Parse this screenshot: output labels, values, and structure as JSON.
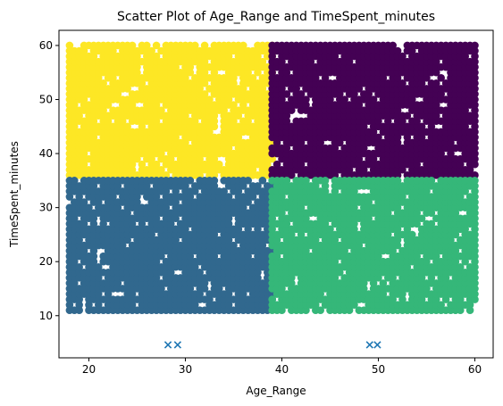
{
  "chart_data": {
    "type": "scatter",
    "title": "Scatter Plot of Age_Range and TimeSpent_minutes",
    "xlabel": "Age_Range",
    "ylabel": "TimeSpent_minutes",
    "xlim": [
      16.9,
      61.9
    ],
    "ylim": [
      2.2,
      62.8
    ],
    "xticks": [
      20,
      30,
      40,
      50,
      60
    ],
    "yticks": [
      10,
      20,
      30,
      40,
      50,
      60
    ],
    "grid": false,
    "colors": {
      "young_high": "#fde725",
      "young_low": "#31688e",
      "old_high": "#440154",
      "old_low": "#35b779",
      "centroid": "#1f77b4"
    },
    "clusters": [
      {
        "color_key": "young_high",
        "x_range": [
          18,
          39
        ],
        "y_range": [
          36,
          60
        ]
      },
      {
        "color_key": "young_low",
        "x_range": [
          18,
          39
        ],
        "y_range": [
          11,
          35
        ]
      },
      {
        "color_key": "old_high",
        "x_range": [
          39,
          60
        ],
        "y_range": [
          36,
          60
        ]
      },
      {
        "color_key": "old_low",
        "x_range": [
          39,
          60
        ],
        "y_range": [
          11,
          35
        ]
      }
    ],
    "centroids": [
      {
        "x": 28.2,
        "y": 4.6
      },
      {
        "x": 29.2,
        "y": 4.6
      },
      {
        "x": 49.1,
        "y": 4.6
      },
      {
        "x": 49.9,
        "y": 4.6
      }
    ]
  }
}
